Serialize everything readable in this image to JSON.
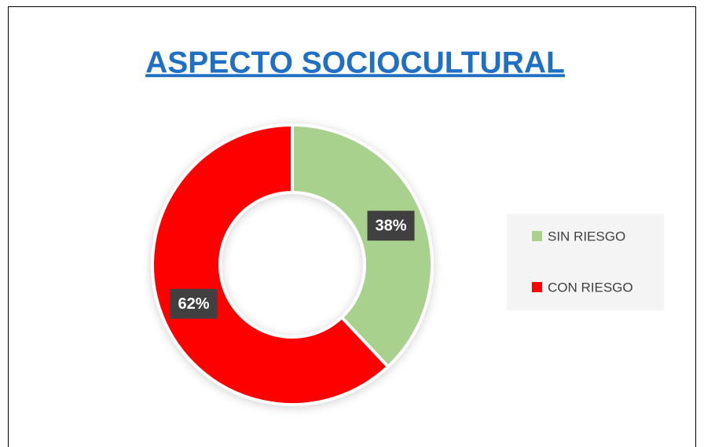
{
  "chart_data": {
    "type": "pie",
    "title": "ASPECTO SOCIOCULTURAL",
    "categories": [
      "SIN RIESGO",
      "CON RIESGO"
    ],
    "values": [
      38,
      62
    ],
    "value_labels": [
      "38%",
      "62%"
    ],
    "colors": [
      "#a9d18e",
      "#ff0000"
    ],
    "legend": "right"
  }
}
